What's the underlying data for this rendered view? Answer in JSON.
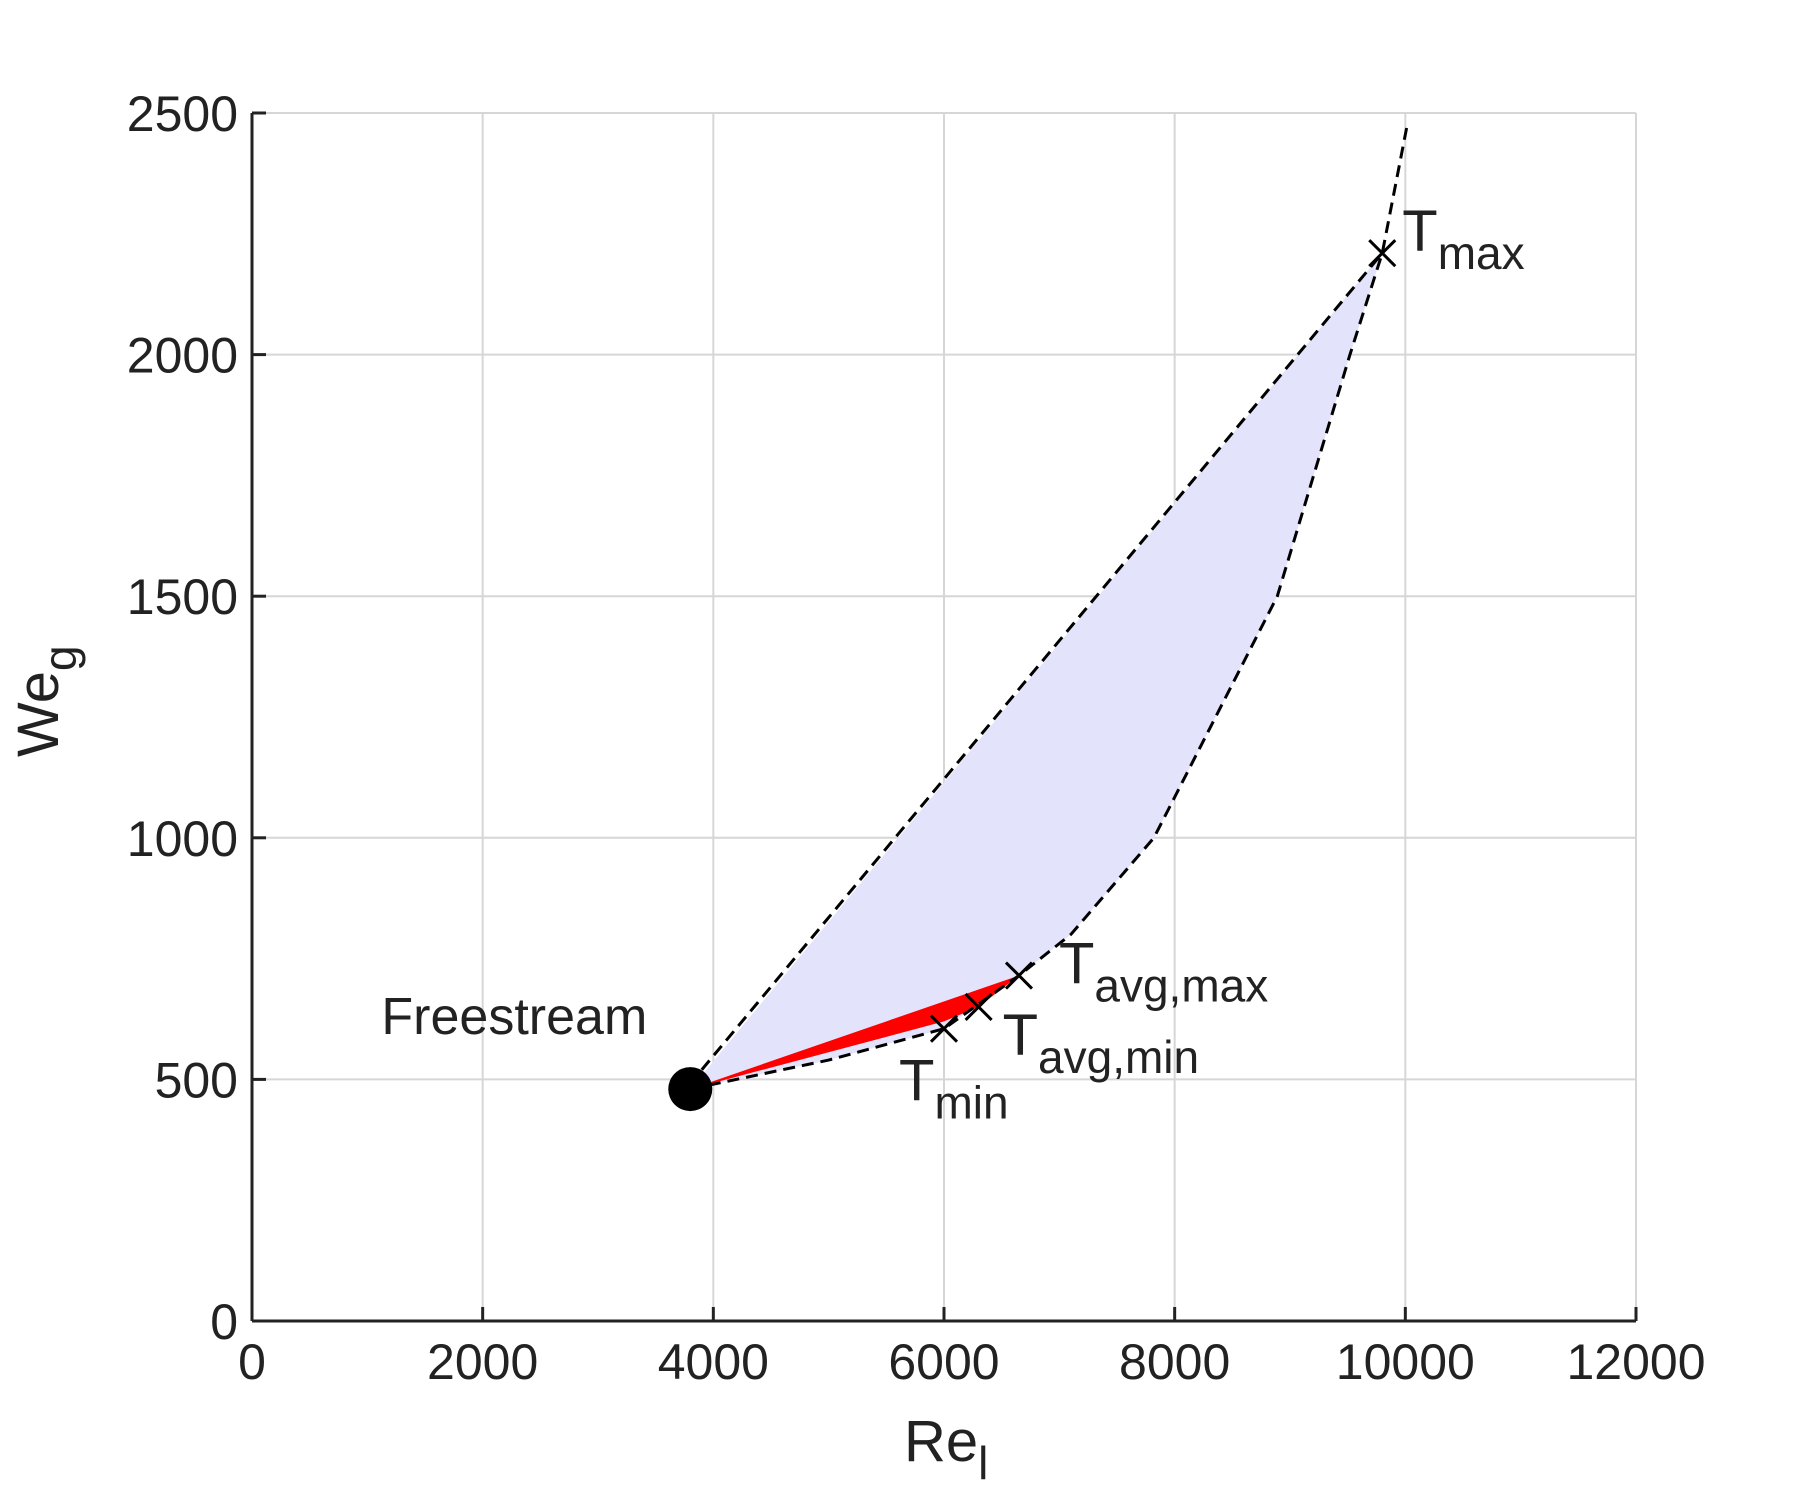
{
  "chart_data": {
    "type": "line",
    "xlabel": {
      "text": "Re",
      "subscript": "l"
    },
    "ylabel": {
      "text": "We",
      "subscript": "g"
    },
    "xlim": [
      0,
      12000
    ],
    "ylim": [
      0,
      2500
    ],
    "xticks": [
      0,
      2000,
      4000,
      6000,
      8000,
      10000,
      12000
    ],
    "yticks": [
      0,
      500,
      1000,
      1500,
      2000,
      2500
    ],
    "grid": true,
    "fill_regions": [
      {
        "color": "#e3e3fb",
        "x": [
          3800,
          9800,
          9520,
          8890,
          7820,
          7100,
          6650,
          6000,
          5000,
          3800
        ],
        "values": [
          480,
          2210,
          2000,
          1500,
          1000,
          800,
          715,
          605,
          540,
          480
        ]
      },
      {
        "color": "#ff0000",
        "x": [
          3800,
          6650,
          6300,
          6000,
          3800
        ],
        "values": [
          480,
          715,
          650,
          620,
          480
        ]
      }
    ],
    "series": [
      {
        "color": "#000000",
        "dashed": true,
        "x": [
          3900,
          9800
        ],
        "values": [
          520,
          2210
        ]
      },
      {
        "color": "#000000",
        "dashed": true,
        "x": [
          3800,
          5000,
          6000,
          6650,
          7100,
          7820,
          8890,
          9520,
          9800,
          10020
        ],
        "values": [
          480,
          540,
          605,
          715,
          800,
          1000,
          1500,
          2000,
          2210,
          2480
        ]
      }
    ],
    "points": [
      {
        "marker": "dot",
        "x": 3800,
        "y": 480,
        "label": "Freestream"
      },
      {
        "marker": "x",
        "x": 6000,
        "y": 605,
        "label": "T",
        "subscript": "min"
      },
      {
        "marker": "x",
        "x": 6300,
        "y": 650,
        "label": "T",
        "subscript": "avg,min"
      },
      {
        "marker": "x",
        "x": 6650,
        "y": 715,
        "label": "T",
        "subscript": "avg,max"
      },
      {
        "marker": "x",
        "x": 9800,
        "y": 2210,
        "label": "T",
        "subscript": "max"
      }
    ]
  }
}
